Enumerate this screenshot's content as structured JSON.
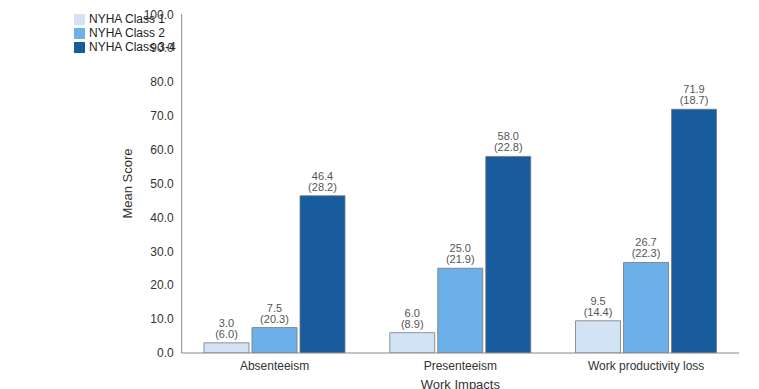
{
  "chart_data": {
    "type": "bar",
    "x_label": "Work Impacts",
    "y_label": "Mean Score",
    "categories": [
      "Absenteeism",
      "Presenteeism",
      "Work productivity loss"
    ],
    "series": [
      {
        "name": "NYHA Class 1",
        "color": "#d3e3f6",
        "values": [
          3.0,
          6.0,
          9.5
        ],
        "value_labels": [
          "3.0 (6.0)",
          "6.0 (8.9)",
          "9.5 (14.4)"
        ]
      },
      {
        "name": "NYHA Class 2",
        "color": "#6cb0ea",
        "values": [
          7.5,
          25.0,
          26.7
        ],
        "value_labels": [
          "7.5 (20.3)",
          "25.0 (21.9)",
          "26.7 (22.3)"
        ]
      },
      {
        "name": "NYHA Class 3-4",
        "color": "#195c9e",
        "values": [
          46.4,
          58.0,
          71.9
        ],
        "value_labels": [
          "46.4 (28.2)",
          "58.0 (22.8)",
          "71.9 (18.7)"
        ]
      }
    ],
    "ylim": [
      0,
      100
    ],
    "yticks": [
      {
        "value": 0,
        "label": "0.0"
      },
      {
        "value": 10,
        "label": "10.0"
      },
      {
        "value": 20,
        "label": "20.0"
      },
      {
        "value": 30,
        "label": "30.0"
      },
      {
        "value": 40,
        "label": "40.0"
      },
      {
        "value": 50,
        "label": "50.0"
      },
      {
        "value": 60,
        "label": "60.0"
      },
      {
        "value": 70,
        "label": "70.0"
      },
      {
        "value": 80,
        "label": "80.0"
      },
      {
        "value": 90,
        "label": "90.0"
      },
      {
        "value": 100,
        "label": "100.0"
      }
    ],
    "grid": false,
    "legend": "upper left",
    "data_labels": true
  }
}
